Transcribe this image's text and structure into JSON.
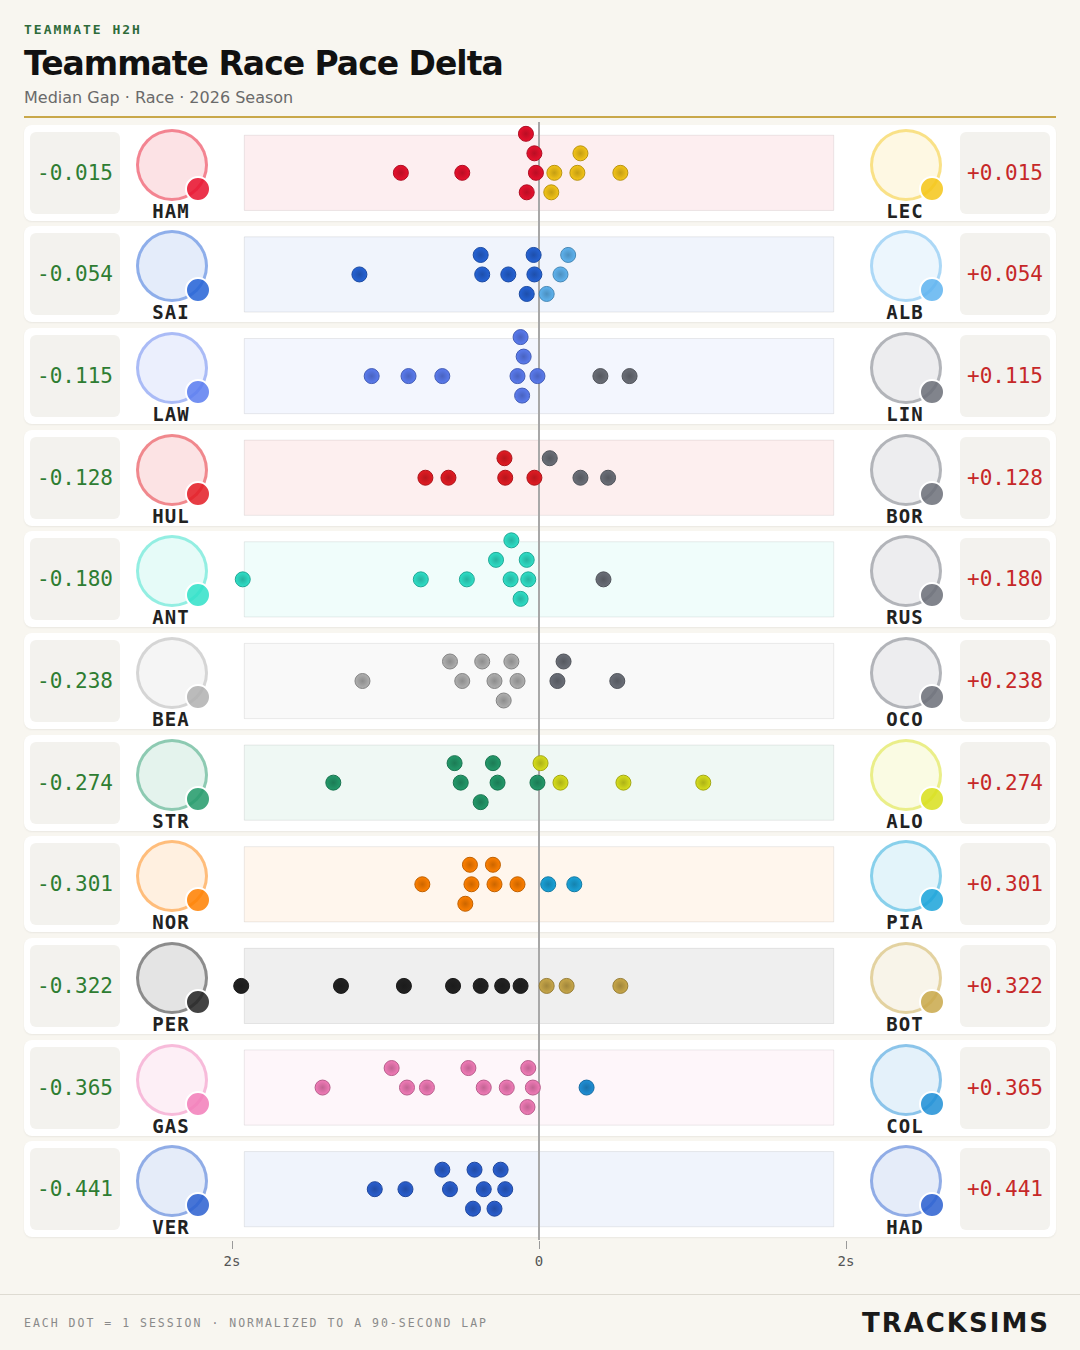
{
  "chart_data": {
    "type": "strip",
    "kicker": "TEAMMATE H2H",
    "title": "Teammate Race Pace Delta",
    "subtitle": "Median Gap · Race · 2026 Season",
    "footnote": "EACH DOT = 1 SESSION · NORMALIZED TO A 90-SECOND LAP",
    "source": "TRACKSIMS",
    "xlim": [
      -2,
      2
    ],
    "xticks": [
      {
        "value": -2,
        "label": "2s"
      },
      0,
      {
        "value": 2,
        "label": "2s"
      }
    ],
    "tick_labels": "x",
    "grid": false,
    "marker": "circle",
    "rows": [
      {
        "median_gap": [
          {
            "value": -0.015,
            "label": "-0.015"
          },
          {
            "value": 0.015,
            "label": "+0.015"
          }
        ],
        "series": [
          {
            "name": "HAM",
            "color": "#e8112d",
            "values": [
              -0.9,
              -0.5,
              -0.03,
              -0.08,
              -0.02,
              -0.085
            ]
          },
          {
            "name": "LEC",
            "color": "#f5c518",
            "values": [
              0.1,
              0.25,
              0.08,
              0.27,
              0.53
            ]
          }
        ]
      },
      {
        "median_gap": [
          {
            "value": -0.054,
            "label": "-0.054"
          },
          {
            "value": 0.054,
            "label": "+0.054"
          }
        ],
        "series": [
          {
            "name": "SAI",
            "color": "#2563d6",
            "values": [
              -1.17,
              -0.37,
              -0.2,
              -0.03,
              -0.38,
              -0.08,
              -0.035
            ]
          },
          {
            "name": "ALB",
            "color": "#5fb4f0",
            "values": [
              0.14,
              0.05,
              0.19
            ]
          }
        ]
      },
      {
        "median_gap": [
          {
            "value": -0.115,
            "label": "-0.115"
          },
          {
            "value": 0.115,
            "label": "+0.115"
          }
        ],
        "series": [
          {
            "name": "LAW",
            "color": "#5b7cf0",
            "values": [
              -1.09,
              -0.85,
              -0.63,
              -0.11,
              -0.14,
              -0.1,
              -0.12,
              -0.01
            ]
          },
          {
            "name": "LIN",
            "color": "#6b6f78",
            "values": [
              0.4,
              0.59
            ]
          }
        ]
      },
      {
        "median_gap": [
          {
            "value": -0.128,
            "label": "-0.128"
          },
          {
            "value": 0.128,
            "label": "+0.128"
          }
        ],
        "series": [
          {
            "name": "HUL",
            "color": "#e31b23",
            "values": [
              -0.74,
              -0.59,
              -0.22,
              -0.225,
              -0.03
            ]
          },
          {
            "name": "BOR",
            "color": "#6b6f78",
            "values": [
              0.07,
              0.27,
              0.45
            ]
          }
        ]
      },
      {
        "median_gap": [
          {
            "value": -0.18,
            "label": "-0.180"
          },
          {
            "value": 0.18,
            "label": "+0.180"
          }
        ],
        "series": [
          {
            "name": "ANT",
            "color": "#2fe0c8",
            "values": [
              -1.93,
              -0.77,
              -0.47,
              -0.28,
              -0.18,
              -0.12,
              -0.07,
              -0.08,
              -0.185
            ]
          },
          {
            "name": "RUS",
            "color": "#6b6f78",
            "values": [
              0.42
            ]
          }
        ]
      },
      {
        "median_gap": [
          {
            "value": -0.238,
            "label": "-0.238"
          },
          {
            "value": 0.238,
            "label": "+0.238"
          }
        ],
        "series": [
          {
            "name": "BEA",
            "color": "#b0b0b0",
            "values": [
              -1.15,
              -0.58,
              -0.37,
              -0.14,
              -0.5,
              -0.29,
              -0.18,
              -0.23
            ]
          },
          {
            "name": "OCO",
            "color": "#6b6f78",
            "values": [
              0.12,
              0.16,
              0.51
            ]
          }
        ]
      },
      {
        "median_gap": [
          {
            "value": -0.274,
            "label": "-0.274"
          },
          {
            "value": 0.274,
            "label": "+0.274"
          }
        ],
        "series": [
          {
            "name": "STR",
            "color": "#239a6a",
            "values": [
              -1.34,
              -0.51,
              -0.27,
              -0.01,
              -0.55,
              -0.3,
              -0.38
            ]
          },
          {
            "name": "ALO",
            "color": "#d8df1c",
            "values": [
              0.01,
              0.14,
              0.55,
              1.07
            ]
          }
        ]
      },
      {
        "median_gap": [
          {
            "value": -0.301,
            "label": "-0.301"
          },
          {
            "value": 0.301,
            "label": "+0.301"
          }
        ],
        "series": [
          {
            "name": "NOR",
            "color": "#ff8000",
            "values": [
              -0.76,
              -0.44,
              -0.3,
              -0.48,
              -0.29,
              -0.14,
              -0.45
            ]
          },
          {
            "name": "PIA",
            "color": "#1aa3d9",
            "values": [
              0.06,
              0.23
            ]
          }
        ]
      },
      {
        "median_gap": [
          {
            "value": -0.322,
            "label": "-0.322"
          },
          {
            "value": 0.322,
            "label": "+0.322"
          }
        ],
        "series": [
          {
            "name": "PER",
            "color": "#222222",
            "values": [
              -1.94,
              -1.29,
              -0.88,
              -0.56,
              -0.38,
              -0.12,
              -0.24
            ]
          },
          {
            "name": "BOT",
            "color": "#c9a84a",
            "values": [
              0.05,
              0.18,
              0.53
            ]
          }
        ]
      },
      {
        "median_gap": [
          {
            "value": -0.365,
            "label": "-0.365"
          },
          {
            "value": 0.365,
            "label": "+0.365"
          }
        ],
        "series": [
          {
            "name": "GAS",
            "color": "#f27cb8",
            "values": [
              -1.41,
              -0.96,
              -0.73,
              -0.86,
              -0.46,
              -0.36,
              -0.21,
              -0.07,
              -0.075,
              -0.04
            ]
          },
          {
            "name": "COL",
            "color": "#1f8fd6",
            "values": [
              0.31
            ]
          }
        ]
      },
      {
        "median_gap": [
          {
            "value": -0.441,
            "label": "-0.441"
          },
          {
            "value": 0.441,
            "label": "+0.441"
          }
        ],
        "series": [
          {
            "name": "VER",
            "color": "#2a5fd0",
            "values": [
              -1.07,
              -0.87,
              -0.63,
              -0.58,
              -0.43,
              -0.29,
              -0.36,
              -0.22,
              -0.42,
              -0.25
            ]
          },
          {
            "name": "HAD",
            "color": "#2a5fd0",
            "values": []
          }
        ]
      }
    ]
  }
}
